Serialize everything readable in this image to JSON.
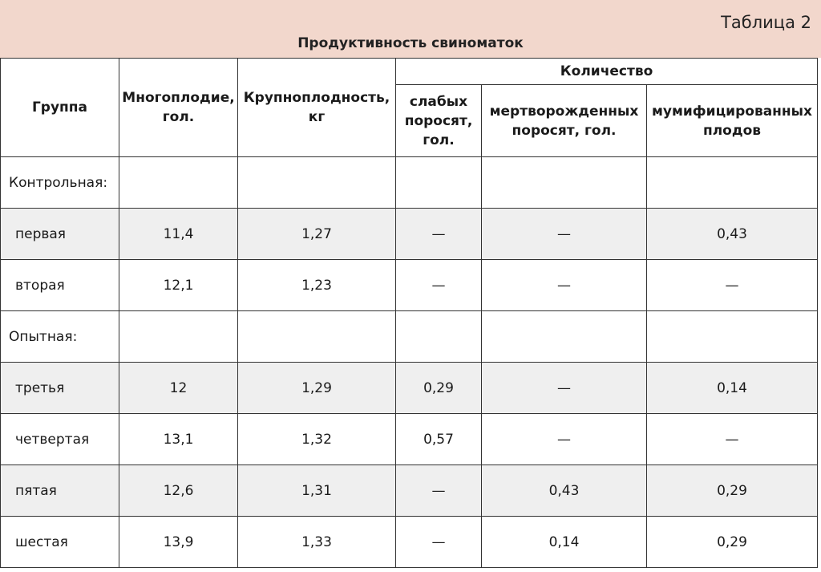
{
  "table_label": "Таблица 2",
  "title": "Продуктивность свиноматок",
  "headers": {
    "group": "Группа",
    "multiple": "Многоплодие, гол.",
    "weight": "Крупноплодность, кг",
    "quantity": "Количество",
    "weak": "слабых поросят, гол.",
    "stillborn": "мертворожденных поросят, гол.",
    "mummified": "мумифицированных плодов"
  },
  "sections": [
    {
      "label": "Контрольная:",
      "rows": [
        {
          "group": "первая",
          "multiple": "11,4",
          "weight": "1,27",
          "weak": "—",
          "stillborn": "—",
          "mummified": "0,43"
        },
        {
          "group": "вторая",
          "multiple": "12,1",
          "weight": "1,23",
          "weak": "—",
          "stillborn": "—",
          "mummified": "—"
        }
      ]
    },
    {
      "label": "Опытная:",
      "rows": [
        {
          "group": "третья",
          "multiple": "12",
          "weight": "1,29",
          "weak": "0,29",
          "stillborn": "—",
          "mummified": "0,14"
        },
        {
          "group": "четвертая",
          "multiple": "13,1",
          "weight": "1,32",
          "weak": "0,57",
          "stillborn": "—",
          "mummified": "—"
        },
        {
          "group": "пятая",
          "multiple": "12,6",
          "weight": "1,31",
          "weak": "—",
          "stillborn": "0,43",
          "mummified": "0,29"
        },
        {
          "group": "шестая",
          "multiple": "13,9",
          "weight": "1,33",
          "weak": "—",
          "stillborn": "0,14",
          "mummified": "0,29"
        }
      ]
    }
  ],
  "colors": {
    "header_bg": "#f2d7cc",
    "row_shade": "#efefef",
    "border": "#333333"
  }
}
